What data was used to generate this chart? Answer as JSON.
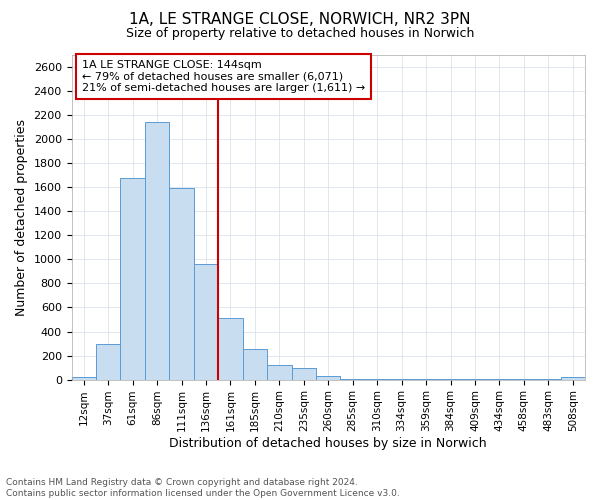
{
  "title": "1A, LE STRANGE CLOSE, NORWICH, NR2 3PN",
  "subtitle": "Size of property relative to detached houses in Norwich",
  "xlabel": "Distribution of detached houses by size in Norwich",
  "ylabel": "Number of detached properties",
  "categories": [
    "12sqm",
    "37sqm",
    "61sqm",
    "86sqm",
    "111sqm",
    "136sqm",
    "161sqm",
    "185sqm",
    "210sqm",
    "235sqm",
    "260sqm",
    "285sqm",
    "310sqm",
    "334sqm",
    "359sqm",
    "384sqm",
    "409sqm",
    "434sqm",
    "458sqm",
    "483sqm",
    "508sqm"
  ],
  "values": [
    25,
    295,
    1680,
    2140,
    1590,
    960,
    510,
    255,
    120,
    95,
    30,
    5,
    5,
    4,
    3,
    2,
    2,
    2,
    2,
    2,
    20
  ],
  "bar_color": "#c9ddf0",
  "bar_edge_color": "#5b9bd5",
  "marker_index": 5,
  "marker_color": "#cc0000",
  "annotation_text": "1A LE STRANGE CLOSE: 144sqm\n← 79% of detached houses are smaller (6,071)\n21% of semi-detached houses are larger (1,611) →",
  "annotation_box_color": "#ffffff",
  "annotation_box_edge": "#cc0000",
  "footer_line1": "Contains HM Land Registry data © Crown copyright and database right 2024.",
  "footer_line2": "Contains public sector information licensed under the Open Government Licence v3.0.",
  "ylim": [
    0,
    2700
  ],
  "yticks": [
    0,
    200,
    400,
    600,
    800,
    1000,
    1200,
    1400,
    1600,
    1800,
    2000,
    2200,
    2400,
    2600
  ],
  "fig_width": 6.0,
  "fig_height": 5.0,
  "background_color": "#ffffff",
  "grid_color": "#d4dde8"
}
